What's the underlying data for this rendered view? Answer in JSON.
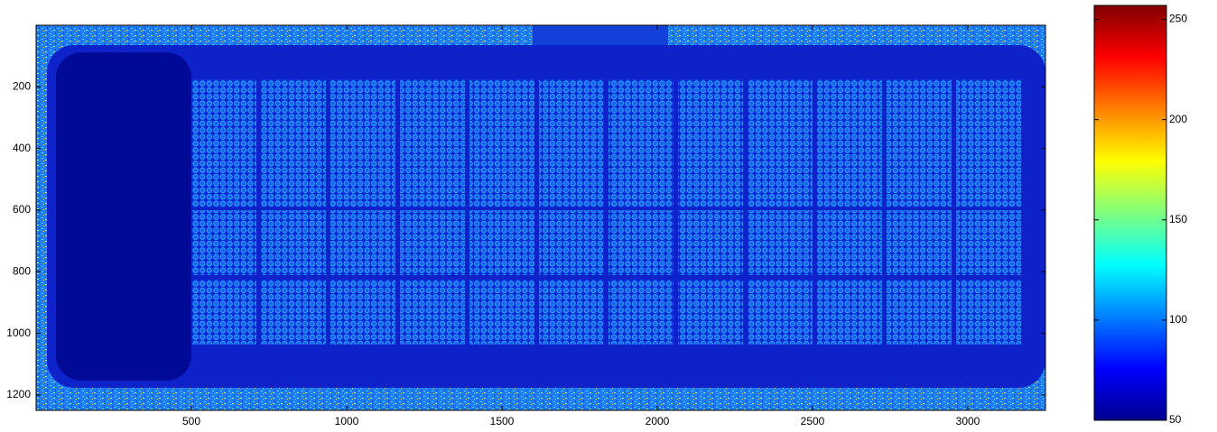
{
  "chart_data": {
    "type": "image",
    "colormap": "jet",
    "xlim": [
      0,
      3250
    ],
    "xticks": [
      500,
      1000,
      1500,
      2000,
      2500,
      3000
    ],
    "ylim": [
      0,
      1250
    ],
    "yticks": [
      200,
      400,
      600,
      800,
      1000,
      1200
    ],
    "y_reversed": true,
    "clim": [
      50,
      257
    ],
    "cticks": [
      50,
      100,
      150,
      200,
      250
    ]
  }
}
